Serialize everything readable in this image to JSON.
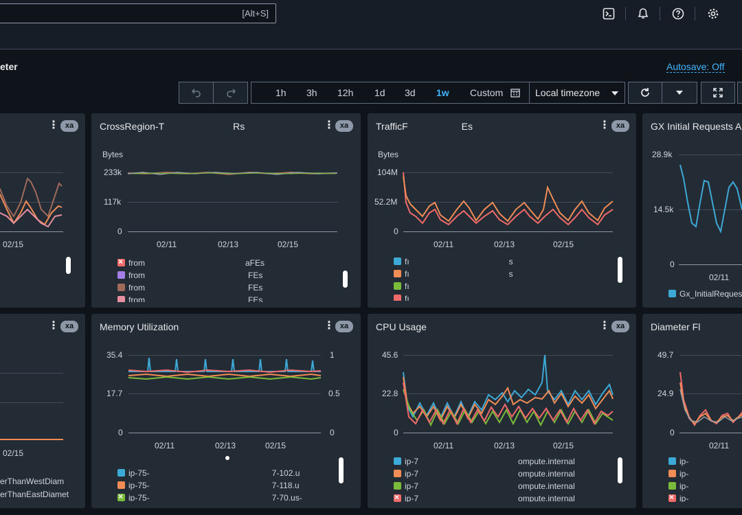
{
  "search": {
    "shortcut": "[Alt+S]"
  },
  "header": {
    "dashboard_title": "eter",
    "autosave": "Autosave: Off"
  },
  "toolbar": {
    "ranges": [
      "1h",
      "3h",
      "12h",
      "1d",
      "3d",
      "1w",
      "Custom"
    ],
    "selected_range": "1w",
    "timezone": "Local timezone"
  },
  "colors": {
    "blue": "#3da9d6",
    "orange": "#f08c55",
    "green": "#7bbb3a",
    "red": "#f06a6a",
    "purple": "#a57fe8",
    "brown": "#a06a5a",
    "pink": "#e58fa0",
    "grey": "#9aa0a6"
  },
  "icons": [
    "cloudshell-icon",
    "bell-icon",
    "help-icon",
    "gear-icon",
    "undo-icon",
    "redo-icon",
    "calendar-icon",
    "refresh-icon",
    "caret-down-icon",
    "fullscreen-icon",
    "menu-dots-icon"
  ],
  "widgets": [
    {
      "id": "w0",
      "title": "",
      "badge": "xa",
      "ticks_x": [
        "02/15"
      ],
      "ticks_y": [],
      "unit": "",
      "legend": []
    },
    {
      "id": "w1",
      "title": "CrossRegion-T",
      "title_tail": "Rs",
      "badge": "xa",
      "unit": "Bytes",
      "ticks_y": [
        "233k",
        "117k",
        "0"
      ],
      "ticks_x": [
        "02/11",
        "02/13",
        "02/15"
      ],
      "legend": [
        {
          "name": "from",
          "tail": "aFEs",
          "color": "red",
          "x": true
        },
        {
          "name": "from",
          "tail": "FEs",
          "color": "purple"
        },
        {
          "name": "from",
          "tail": "FEs",
          "color": "brown"
        },
        {
          "name": "from",
          "tail": "FEs",
          "color": "pink"
        }
      ]
    },
    {
      "id": "w2",
      "title": "TrafficF",
      "title_tail": "Es",
      "badge": "xa",
      "unit": "Bytes",
      "ticks_y": [
        "104M",
        "52.2M",
        "0"
      ],
      "ticks_x": [
        "02/11",
        "02/13",
        "02/15"
      ],
      "legend": [
        {
          "name": "fı",
          "tail": "s",
          "color": "blue"
        },
        {
          "name": "fı",
          "tail": "s",
          "color": "orange"
        },
        {
          "name": "fı",
          "tail": "",
          "color": "green"
        },
        {
          "name": "fı",
          "tail": "",
          "color": "red"
        }
      ]
    },
    {
      "id": "w3",
      "title": "GX Initial Requests A",
      "badge": "",
      "unit": "",
      "ticks_y": [
        "28.9k",
        "14.5k",
        "0"
      ],
      "ticks_x": [
        "02/11"
      ],
      "legend": [
        {
          "name": "Gx_InitialReques",
          "tail": "",
          "color": "blue"
        }
      ]
    },
    {
      "id": "w4",
      "title": "",
      "badge": "xa",
      "unit": "",
      "ticks_y": [],
      "ticks_x": [
        "02/15"
      ],
      "legend": [
        {
          "name": "erThanWestDiam",
          "tail": "",
          "color": ""
        },
        {
          "name": "erThanEastDiamet",
          "tail": "",
          "color": ""
        }
      ]
    },
    {
      "id": "w5",
      "title": "Memory Utilization",
      "badge": "xa",
      "unit": "",
      "ticks_y": [
        "35.4",
        "17.7",
        "0"
      ],
      "ticks_y2": [
        "1",
        "0.5",
        "0"
      ],
      "ticks_x": [
        "02/11",
        "02/13",
        "02/15"
      ],
      "legend": [
        {
          "name": "ip-75-",
          "tail": "7-102.u",
          "color": "blue"
        },
        {
          "name": "ip-75-",
          "tail": "7-118.u",
          "color": "orange"
        },
        {
          "name": "ip-75-",
          "tail": "7-70.us-",
          "color": "green",
          "x": true
        }
      ]
    },
    {
      "id": "w6",
      "title": "CPU Usage",
      "badge": "xa",
      "unit": "",
      "ticks_y": [
        "45.6",
        "22.8",
        "0"
      ],
      "ticks_x": [
        "02/11",
        "02/13",
        "02/15"
      ],
      "legend": [
        {
          "name": "ip-7",
          "tail": "ompute.internal",
          "color": "blue"
        },
        {
          "name": "ip-7",
          "tail": "ompute.internal",
          "color": "orange"
        },
        {
          "name": "ip-7",
          "tail": "ompute.internal",
          "color": "green"
        },
        {
          "name": "ip-7",
          "tail": "ompute.internal",
          "color": "red",
          "x": true
        }
      ]
    },
    {
      "id": "w7",
      "title": "Diameter Fl",
      "badge": "",
      "unit": "",
      "ticks_y": [
        "49.7",
        "24.9",
        "0"
      ],
      "ticks_x": [
        "02/11"
      ],
      "legend": [
        {
          "name": "ip-",
          "tail": "",
          "color": "blue"
        },
        {
          "name": "ip-",
          "tail": "",
          "color": "orange"
        },
        {
          "name": "ip-",
          "tail": "",
          "color": "green"
        },
        {
          "name": "ip-",
          "tail": "",
          "color": "red",
          "x": true
        }
      ]
    }
  ]
}
